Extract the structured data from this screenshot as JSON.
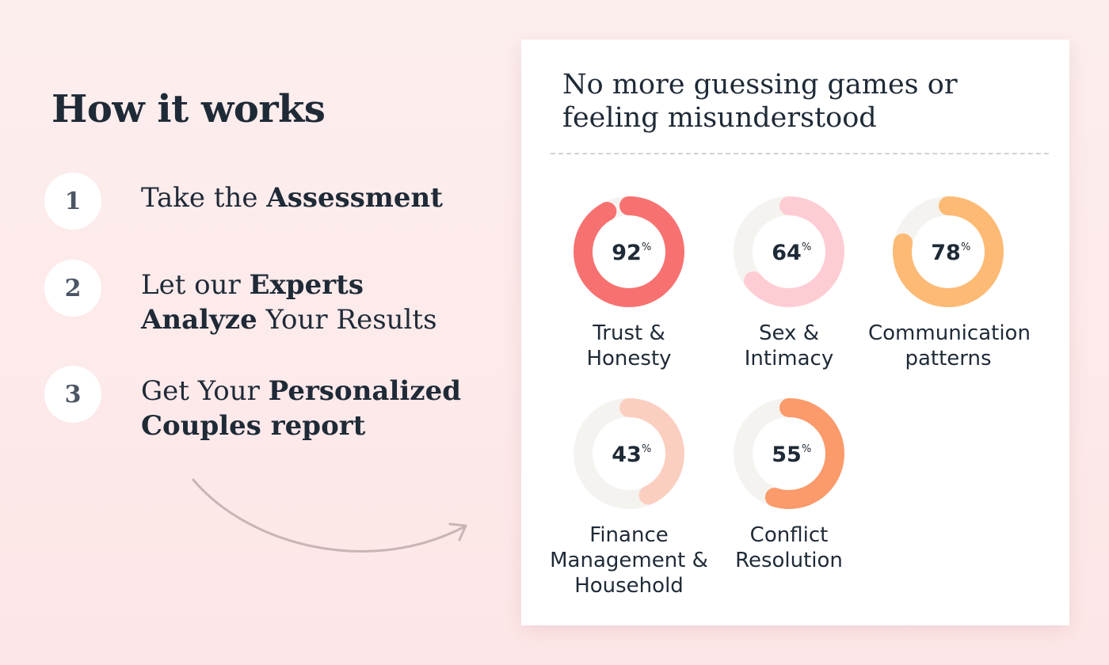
{
  "page": {
    "title": "How it works"
  },
  "steps": [
    {
      "number": "1",
      "parts": [
        {
          "text": "Take the ",
          "bold": false
        },
        {
          "text": "Assessment",
          "bold": true
        }
      ]
    },
    {
      "number": "2",
      "parts": [
        {
          "text": "Let our ",
          "bold": false
        },
        {
          "text": "Experts Analyze",
          "bold": true
        },
        {
          "text": " Your Results",
          "bold": false
        }
      ]
    },
    {
      "number": "3",
      "parts": [
        {
          "text": "Get Your ",
          "bold": false
        },
        {
          "text": "Personalized Couples report",
          "bold": true
        }
      ]
    }
  ],
  "card": {
    "title_line1": "No more guessing games or",
    "title_line2": "feeling misunderstood",
    "metrics": [
      {
        "name": "trust-honesty",
        "value": 92,
        "value_label": "92",
        "unit": "%",
        "label_lines": [
          "Trust &",
          "Honesty"
        ],
        "color": "#f87171"
      },
      {
        "name": "sex-intimacy",
        "value": 64,
        "value_label": "64",
        "unit": "%",
        "label_lines": [
          "Sex &",
          "Intimacy"
        ],
        "color": "#fecdd3"
      },
      {
        "name": "communication-patterns",
        "value": 78,
        "value_label": "78",
        "unit": "%",
        "label_lines": [
          "Communication",
          "patterns"
        ],
        "color": "#fdba74"
      },
      {
        "name": "finance-household",
        "value": 43,
        "value_label": "43",
        "unit": "%",
        "label_lines": [
          "Finance",
          "Management &",
          "Household"
        ],
        "color": "#fbcfc0"
      },
      {
        "name": "conflict-resolution",
        "value": 55,
        "value_label": "55",
        "unit": "%",
        "label_lines": [
          "Conflict",
          "Resolution"
        ],
        "color": "#fb9a6a"
      }
    ],
    "track_color": "#f5f3f0"
  }
}
